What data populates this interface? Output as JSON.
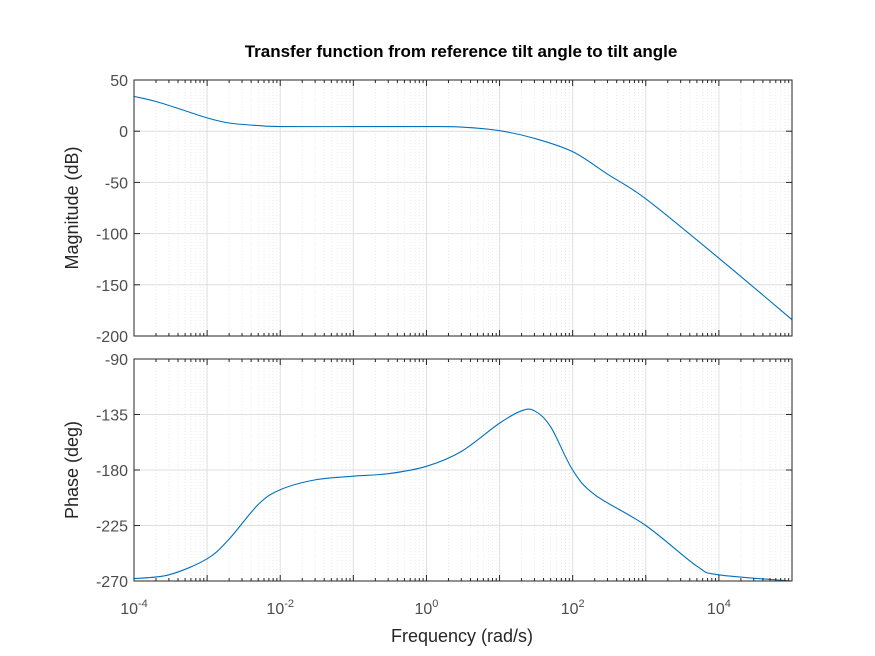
{
  "chart_data": {
    "type": "line",
    "title": "Transfer function from reference tilt angle to tilt angle",
    "xlabel": "Frequency  (rad/s)",
    "xscale": "log",
    "xlim": [
      0.0001,
      100000
    ],
    "x_ticks": [
      {
        "base": "10",
        "exp": "-4"
      },
      {
        "base": "10",
        "exp": "-2"
      },
      {
        "base": "10",
        "exp": "0"
      },
      {
        "base": "10",
        "exp": "2"
      },
      {
        "base": "10",
        "exp": "4"
      }
    ],
    "x_tick_values": [
      0.0001,
      0.01,
      1,
      100,
      10000
    ],
    "grid": true,
    "line_color": "#0072bd",
    "panels": [
      {
        "name": "magnitude",
        "ylabel": "Magnitude (dB)",
        "ylim": [
          -200,
          50
        ],
        "yticks": [
          50,
          0,
          -50,
          -100,
          -150,
          -200
        ],
        "ytick_labels": [
          "50",
          "0",
          "-50",
          "-100",
          "-150",
          "-200"
        ],
        "x": [
          0.0001,
          0.0002,
          0.0005,
          0.001,
          0.002,
          0.005,
          0.01,
          0.1,
          1,
          3,
          10,
          30,
          100,
          300,
          1000,
          10000,
          100000
        ],
        "y": [
          34,
          29,
          20,
          13,
          8,
          5.5,
          4.5,
          4.5,
          4.5,
          4,
          0.5,
          -7,
          -20,
          -42,
          -66,
          -124,
          -184
        ]
      },
      {
        "name": "phase",
        "ylabel": "Phase (deg)",
        "ylim": [
          -270,
          -90
        ],
        "yticks": [
          -90,
          -135,
          -180,
          -225,
          -270
        ],
        "ytick_labels": [
          "-90",
          "-135",
          "-180",
          "-225",
          "-270"
        ],
        "x": [
          0.0001,
          0.0003,
          0.001,
          0.002,
          0.005,
          0.01,
          0.03,
          0.1,
          0.3,
          1,
          3,
          10,
          20,
          30,
          50,
          100,
          200,
          1000,
          5000,
          10000,
          100000
        ],
        "y": [
          -268,
          -265,
          -252,
          -236,
          -208,
          -196,
          -188,
          -185,
          -183,
          -177,
          -165,
          -142,
          -132,
          -132,
          -145,
          -180,
          -200,
          -225,
          -258,
          -265,
          -270
        ]
      }
    ]
  }
}
